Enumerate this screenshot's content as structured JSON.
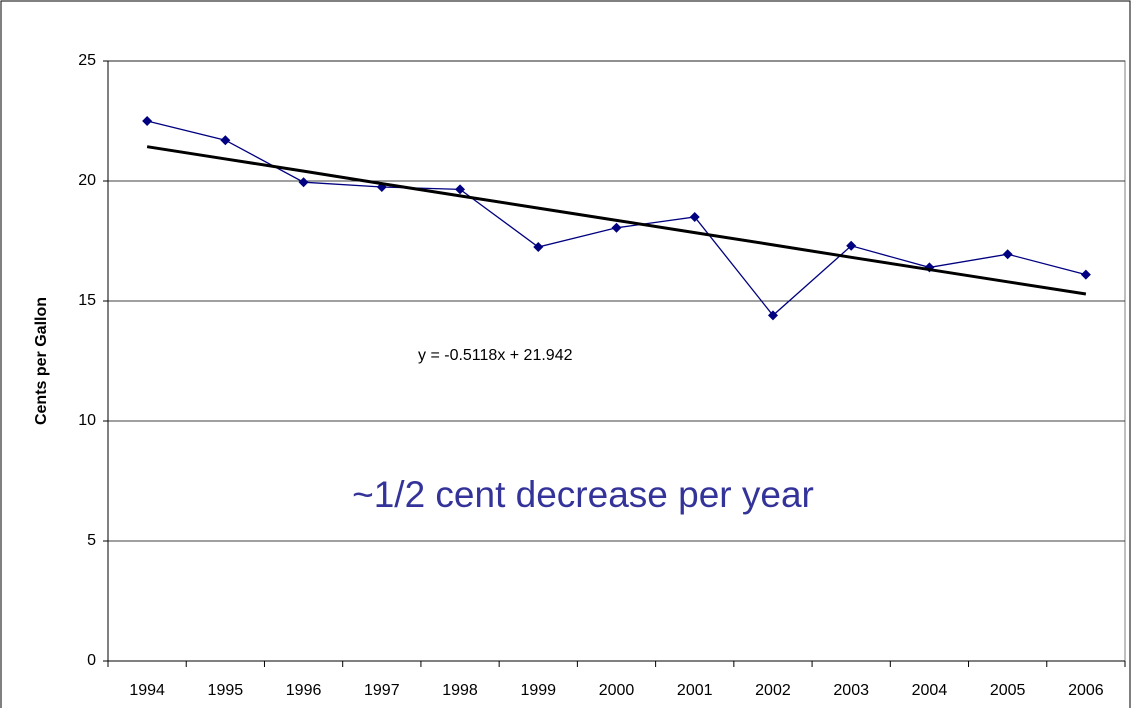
{
  "chart_data": {
    "type": "line",
    "y_label": "Cents per Gallon",
    "annotations": [
      "y = -0.5118x + 21.942",
      "~1/2 cent decrease per year"
    ],
    "categories": [
      "1994",
      "1995",
      "1996",
      "1997",
      "1998",
      "1999",
      "2000",
      "2001",
      "2002",
      "2003",
      "2004",
      "2005",
      "2006"
    ],
    "series": [
      {
        "color": "#000080",
        "marker": "diamond",
        "values": [
          22.5,
          21.7,
          19.95,
          19.75,
          19.65,
          17.25,
          18.05,
          18.5,
          14.4,
          17.3,
          16.4,
          16.95,
          16.1
        ]
      },
      {
        "color": "#000000",
        "trendline": true,
        "values": [
          21.43,
          20.92,
          20.41,
          19.89,
          19.38,
          18.87,
          18.36,
          17.85,
          17.34,
          16.82,
          16.31,
          15.8,
          15.29
        ]
      }
    ],
    "ylim": [
      0,
      25
    ],
    "yticks": [
      0,
      5,
      10,
      15,
      20,
      25
    ],
    "grid": true
  }
}
